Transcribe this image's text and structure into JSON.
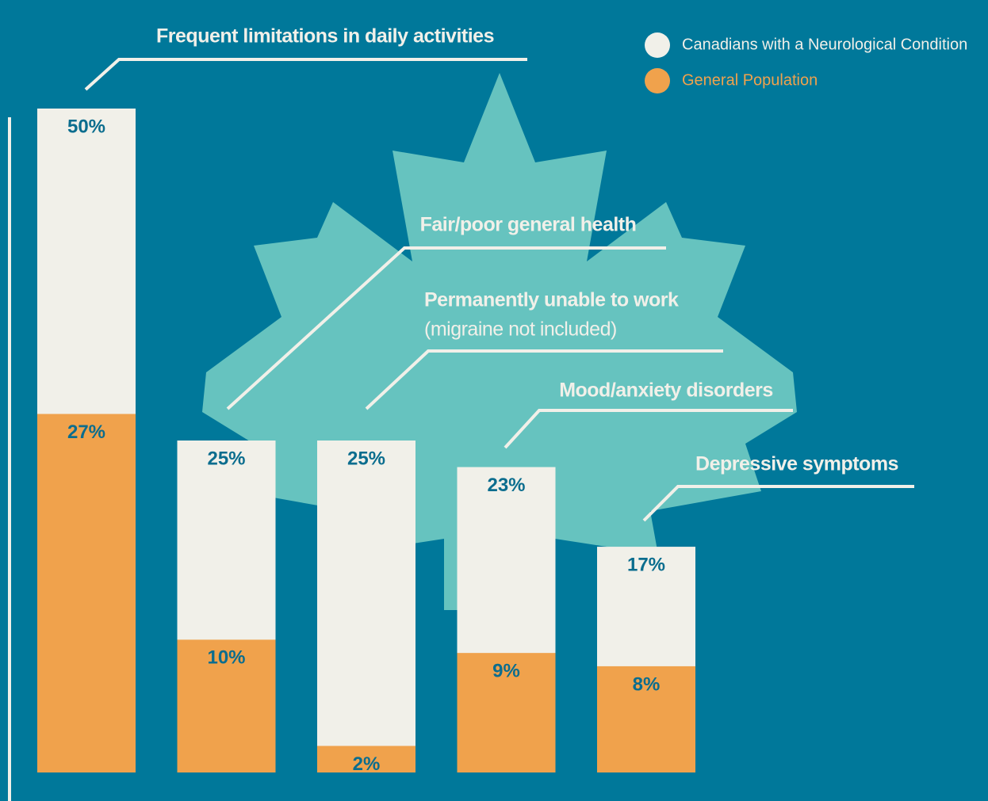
{
  "chart_data": {
    "type": "overlap-bar",
    "categories": [
      "Frequent limitations in daily activities",
      "Fair/poor general health",
      "Permanently unable to work",
      "Mood/anxiety disorders",
      "Depressive symptoms"
    ],
    "category_notes": [
      null,
      null,
      "(migraine not included)",
      null,
      null
    ],
    "series": [
      {
        "name": "Canadians with a Neurological Condition",
        "color": "#f1f0e9",
        "values": [
          50,
          25,
          25,
          23,
          17
        ],
        "value_labels": [
          "50%",
          "25%",
          "25%",
          "23%",
          "17%"
        ]
      },
      {
        "name": "General Population",
        "color": "#f0a24c",
        "values": [
          27,
          10,
          2,
          9,
          8
        ],
        "value_labels": [
          "27%",
          "10%",
          "2%",
          "9%",
          "8%"
        ]
      }
    ],
    "ylim": [
      0,
      50
    ]
  }
}
